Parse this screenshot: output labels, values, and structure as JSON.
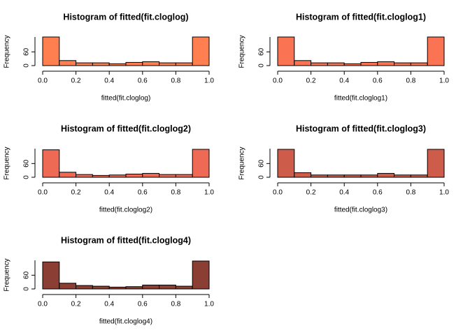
{
  "chart_data": [
    {
      "type": "histogram",
      "title": "Histogram of fitted(fit.cloglog)",
      "xlabel": "fitted(fit.cloglog)",
      "ylabel": "Frequency",
      "color": "#ff7f50",
      "bins": [
        0,
        0.1,
        0.2,
        0.3,
        0.4,
        0.5,
        0.6,
        0.7,
        0.8,
        0.9,
        1
      ],
      "counts": [
        125,
        22,
        12,
        12,
        8,
        14,
        17,
        12,
        12,
        125
      ],
      "xlim": [
        0,
        1
      ],
      "xticks": [
        {
          "value": 0,
          "label": "0.0"
        },
        {
          "value": 0.2,
          "label": "0.2"
        },
        {
          "value": 0.4,
          "label": "0.4"
        },
        {
          "value": 0.6,
          "label": "0.6"
        },
        {
          "value": 0.8,
          "label": "0.8"
        },
        {
          "value": 1,
          "label": "1.0"
        }
      ],
      "ylim": [
        0,
        125
      ],
      "yticks": [
        0,
        60
      ]
    },
    {
      "type": "histogram",
      "title": "Histogram of fitted(fit.cloglog1)",
      "xlabel": "fitted(fit.cloglog1)",
      "ylabel": "Frequency",
      "color": "#fa7454",
      "bins": [
        0,
        0.1,
        0.2,
        0.3,
        0.4,
        0.5,
        0.6,
        0.7,
        0.8,
        0.9,
        1
      ],
      "counts": [
        125,
        22,
        12,
        12,
        8,
        14,
        17,
        12,
        12,
        125
      ],
      "xlim": [
        0,
        1
      ],
      "xticks": [
        {
          "value": 0,
          "label": "0.0"
        },
        {
          "value": 0.2,
          "label": "0.2"
        },
        {
          "value": 0.4,
          "label": "0.4"
        },
        {
          "value": 0.6,
          "label": "0.6"
        },
        {
          "value": 0.8,
          "label": "0.8"
        },
        {
          "value": 1,
          "label": "1.0"
        }
      ],
      "ylim": [
        0,
        125
      ],
      "yticks": [
        0,
        60
      ]
    },
    {
      "type": "histogram",
      "title": "Histogram of fitted(fit.cloglog2)",
      "xlabel": "fitted(fit.cloglog2)",
      "ylabel": "Frequency",
      "color": "#ee6a55",
      "bins": [
        0,
        0.1,
        0.2,
        0.3,
        0.4,
        0.5,
        0.6,
        0.7,
        0.8,
        0.9,
        1
      ],
      "counts": [
        120,
        22,
        12,
        8,
        10,
        14,
        17,
        12,
        12,
        122
      ],
      "xlim": [
        0,
        1
      ],
      "xticks": [
        {
          "value": 0,
          "label": "0.0"
        },
        {
          "value": 0.2,
          "label": "0.2"
        },
        {
          "value": 0.4,
          "label": "0.4"
        },
        {
          "value": 0.6,
          "label": "0.6"
        },
        {
          "value": 0.8,
          "label": "0.8"
        },
        {
          "value": 1,
          "label": "1.0"
        }
      ],
      "ylim": [
        0,
        125
      ],
      "yticks": [
        0,
        60
      ]
    },
    {
      "type": "histogram",
      "title": "Histogram of fitted(fit.cloglog3)",
      "xlabel": "fitted(fit.cloglog3)",
      "ylabel": "Frequency",
      "color": "#cd5c4a",
      "bins": [
        0,
        0.1,
        0.2,
        0.3,
        0.4,
        0.5,
        0.6,
        0.7,
        0.8,
        0.9,
        1
      ],
      "counts": [
        122,
        20,
        10,
        10,
        10,
        10,
        17,
        10,
        10,
        122
      ],
      "xlim": [
        0,
        1
      ],
      "xticks": [
        {
          "value": 0,
          "label": "0.0"
        },
        {
          "value": 0.2,
          "label": "0.2"
        },
        {
          "value": 0.4,
          "label": "0.4"
        },
        {
          "value": 0.6,
          "label": "0.6"
        },
        {
          "value": 0.8,
          "label": "0.8"
        },
        {
          "value": 1,
          "label": "1.0"
        }
      ],
      "ylim": [
        0,
        125
      ],
      "yticks": [
        0,
        60
      ]
    },
    {
      "type": "histogram",
      "title": "Histogram of fitted(fit.cloglog4)",
      "xlabel": "fitted(fit.cloglog4)",
      "ylabel": "Frequency",
      "color": "#8b3e33",
      "bins": [
        0,
        0.1,
        0.2,
        0.3,
        0.4,
        0.5,
        0.6,
        0.7,
        0.8,
        0.9,
        1
      ],
      "counts": [
        118,
        25,
        15,
        12,
        8,
        10,
        17,
        17,
        12,
        122
      ],
      "xlim": [
        0,
        1
      ],
      "xticks": [
        {
          "value": 0,
          "label": "0.0"
        },
        {
          "value": 0.2,
          "label": "0.2"
        },
        {
          "value": 0.4,
          "label": "0.4"
        },
        {
          "value": 0.6,
          "label": "0.6"
        },
        {
          "value": 0.8,
          "label": "0.8"
        },
        {
          "value": 1,
          "label": "1.0"
        }
      ],
      "ylim": [
        0,
        125
      ],
      "yticks": [
        0,
        60
      ]
    }
  ]
}
